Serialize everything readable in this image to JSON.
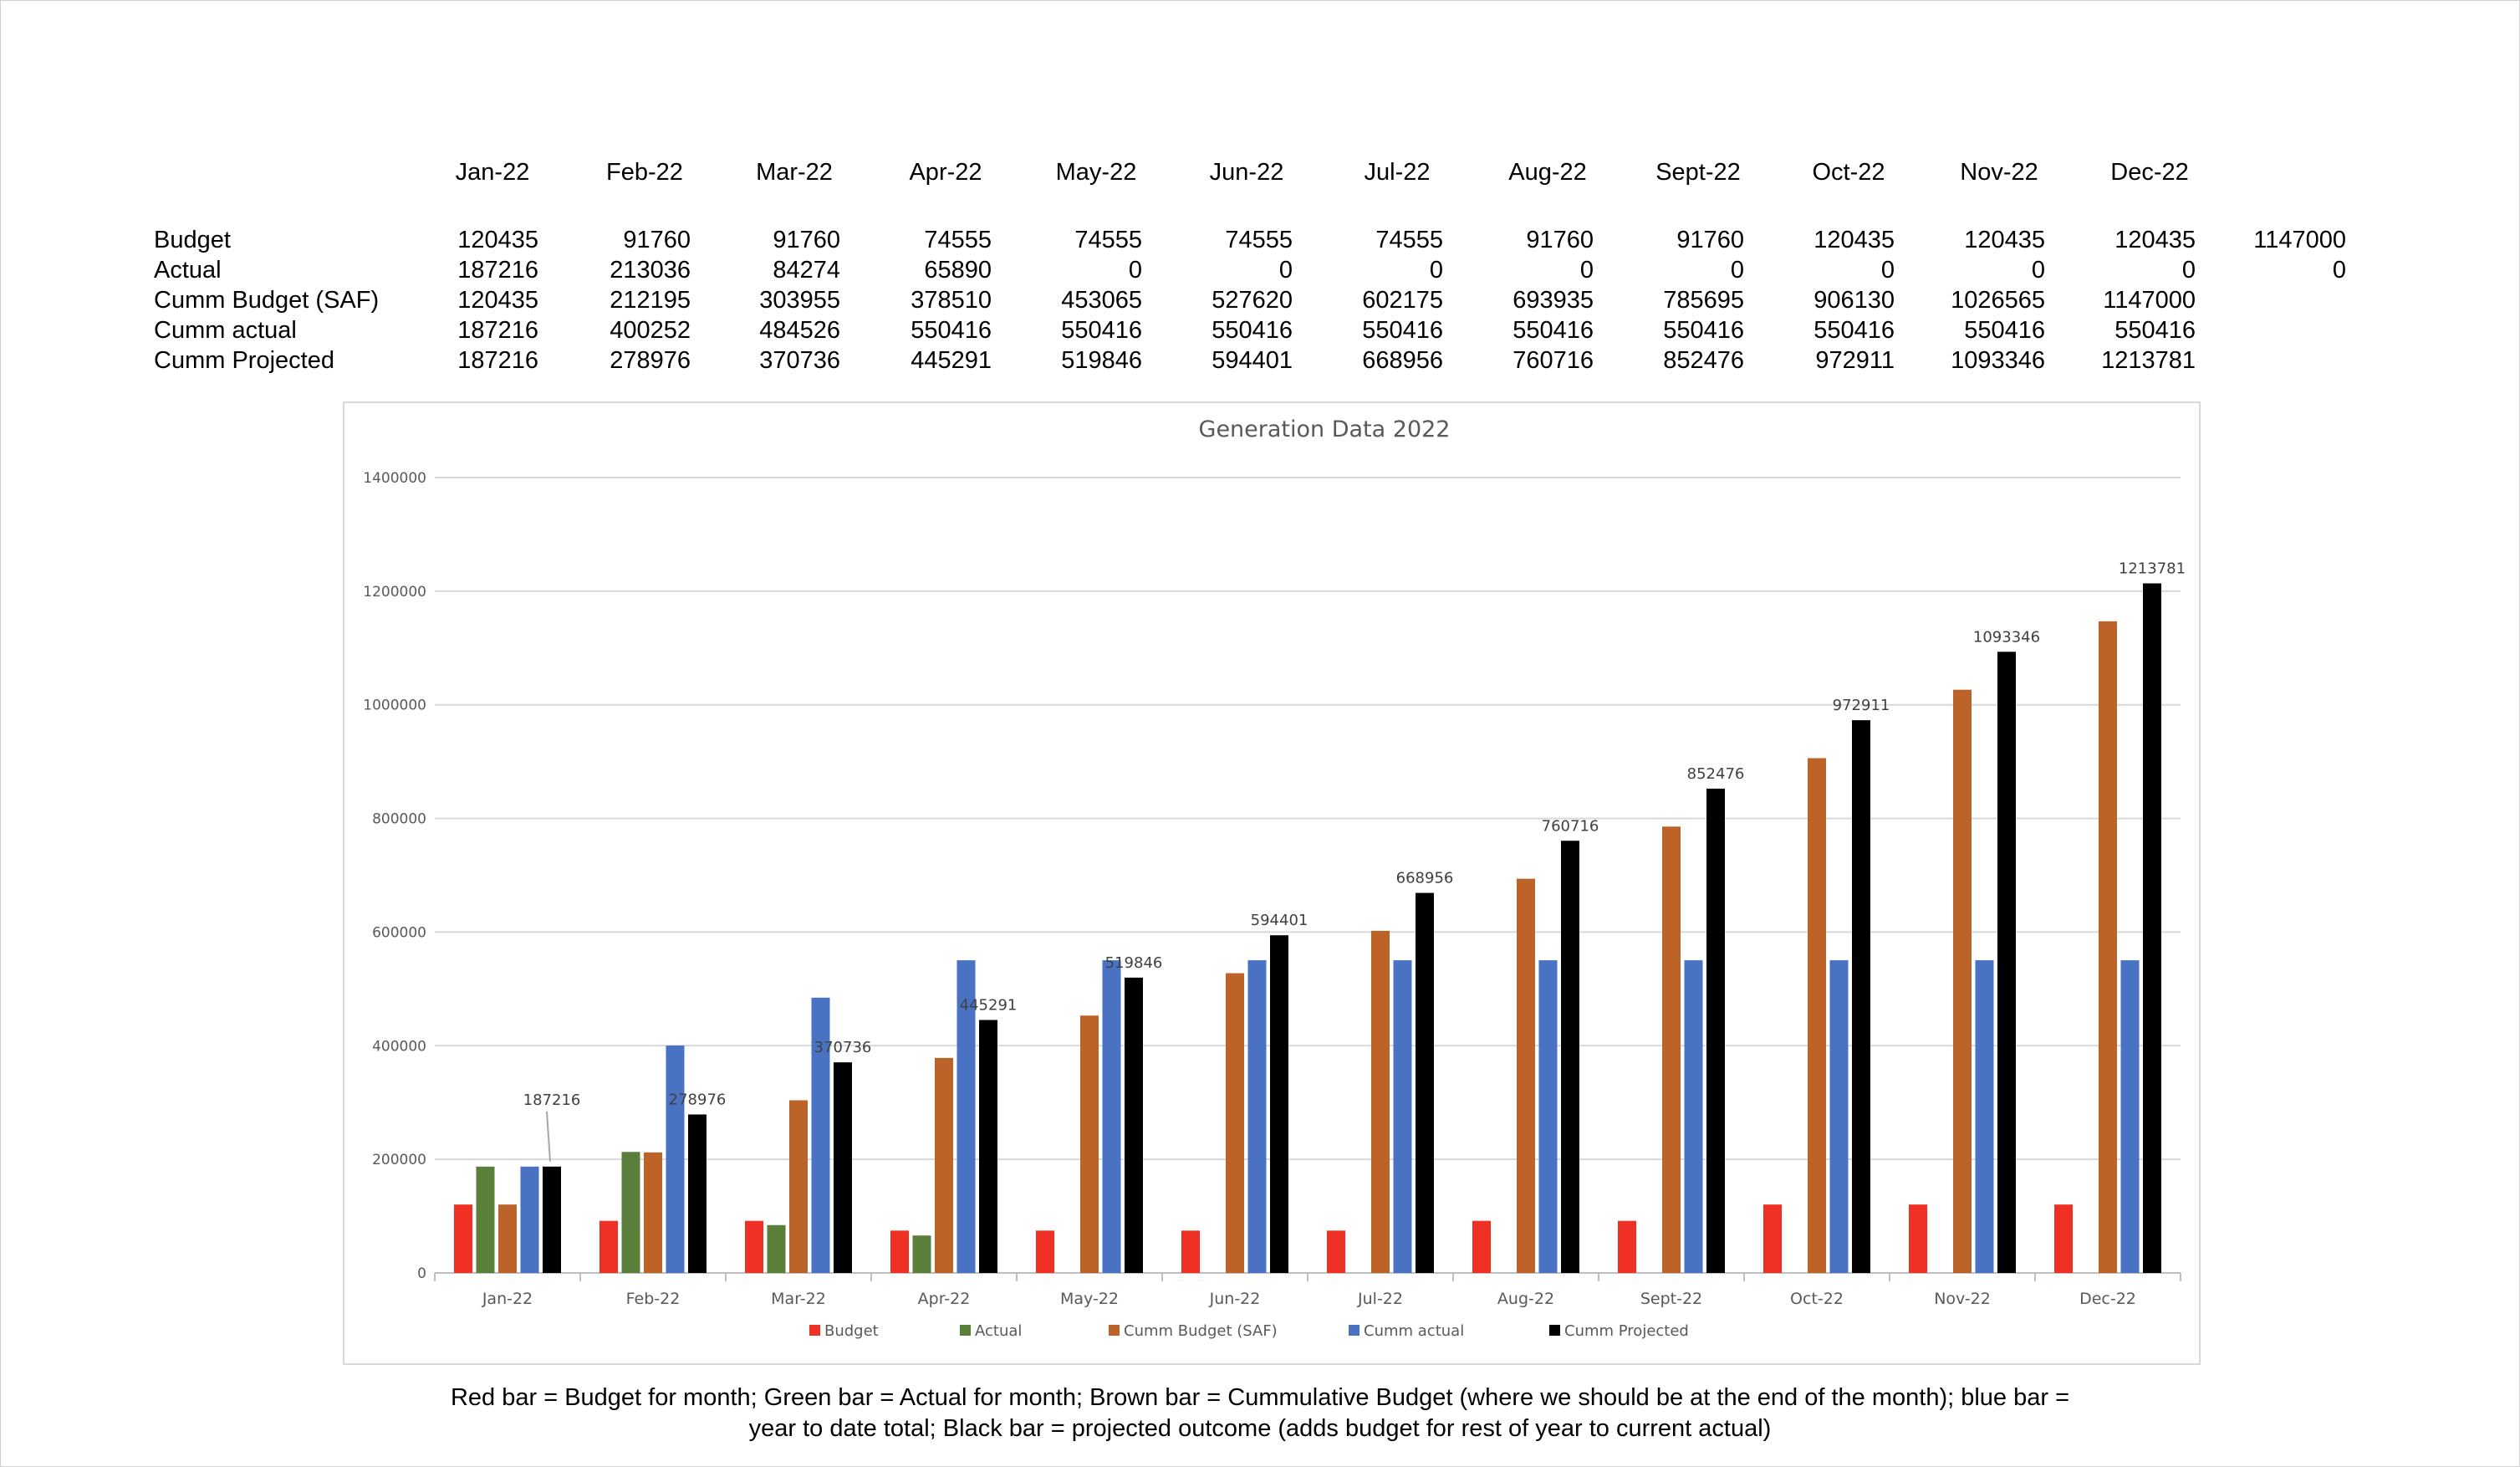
{
  "table": {
    "months": [
      "Jan-22",
      "Feb-22",
      "Mar-22",
      "Apr-22",
      "May-22",
      "Jun-22",
      "Jul-22",
      "Aug-22",
      "Sept-22",
      "Oct-22",
      "Nov-22",
      "Dec-22"
    ],
    "rows": [
      {
        "label": "Budget",
        "values": [
          "120435",
          "91760",
          "91760",
          "74555",
          "74555",
          "74555",
          "74555",
          "91760",
          "91760",
          "120435",
          "120435",
          "120435"
        ],
        "extra": "1147000"
      },
      {
        "label": "Actual",
        "values": [
          "187216",
          "213036",
          "84274",
          "65890",
          "0",
          "0",
          "0",
          "0",
          "0",
          "0",
          "0",
          "0"
        ],
        "extra": "0"
      },
      {
        "label": "Cumm  Budget (SAF)",
        "values": [
          "120435",
          "212195",
          "303955",
          "378510",
          "453065",
          "527620",
          "602175",
          "693935",
          "785695",
          "906130",
          "1026565",
          "1147000"
        ]
      },
      {
        "label": "Cumm actual",
        "values": [
          "187216",
          "400252",
          "484526",
          "550416",
          "550416",
          "550416",
          "550416",
          "550416",
          "550416",
          "550416",
          "550416",
          "550416"
        ]
      },
      {
        "label": "Cumm Projected",
        "values": [
          "187216",
          "278976",
          "370736",
          "445291",
          "519846",
          "594401",
          "668956",
          "760716",
          "852476",
          "972911",
          "1093346",
          "1213781"
        ]
      }
    ]
  },
  "chart_data": {
    "type": "bar",
    "title": "Generation Data 2022",
    "categories": [
      "Jan-22",
      "Feb-22",
      "Mar-22",
      "Apr-22",
      "May-22",
      "Jun-22",
      "Jul-22",
      "Aug-22",
      "Sept-22",
      "Oct-22",
      "Nov-22",
      "Dec-22"
    ],
    "ylim": [
      0,
      1400000
    ],
    "yticks": [
      0,
      200000,
      400000,
      600000,
      800000,
      1000000,
      1200000,
      1400000
    ],
    "grid": true,
    "legend_position": "bottom",
    "series": [
      {
        "name": "Budget",
        "color": "#ee3124",
        "values": [
          120435,
          91760,
          91760,
          74555,
          74555,
          74555,
          74555,
          91760,
          91760,
          120435,
          120435,
          120435
        ]
      },
      {
        "name": "Actual",
        "color": "#5a7f3a",
        "values": [
          187216,
          213036,
          84274,
          65890,
          0,
          0,
          0,
          0,
          0,
          0,
          0,
          0
        ]
      },
      {
        "name": "Cumm  Budget (SAF)",
        "color": "#bc6329",
        "values": [
          120435,
          212195,
          303955,
          378510,
          453065,
          527620,
          602175,
          693935,
          785695,
          906130,
          1026565,
          1147000
        ]
      },
      {
        "name": "Cumm actual",
        "color": "#4a72c3",
        "values": [
          187216,
          400252,
          484526,
          550416,
          550416,
          550416,
          550416,
          550416,
          550416,
          550416,
          550416,
          550416
        ]
      },
      {
        "name": "Cumm Projected",
        "color": "#000000",
        "values": [
          187216,
          278976,
          370736,
          445291,
          519846,
          594401,
          668956,
          760716,
          852476,
          972911,
          1093346,
          1213781
        ],
        "data_labels": true
      }
    ]
  },
  "footnote": {
    "line1": "Red bar = Budget for month; Green bar = Actual for month; Brown bar = Cummulative Budget (where we should be at the end of the month); blue bar =",
    "line2": "year to date total; Black bar = projected outcome (adds budget for rest of year to current actual)"
  }
}
